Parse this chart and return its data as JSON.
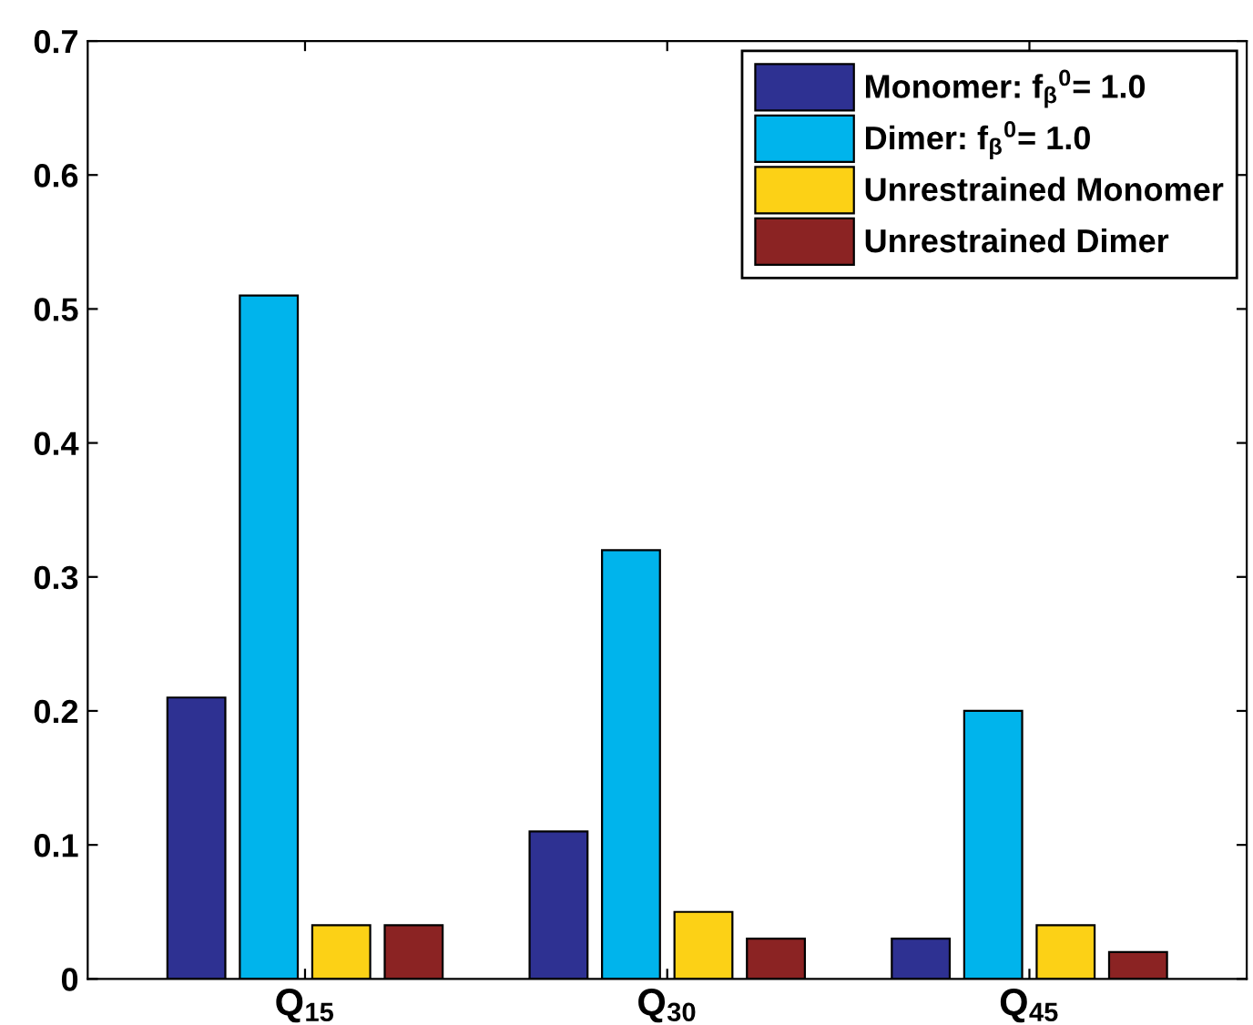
{
  "chart_data": {
    "type": "bar",
    "categories": [
      "Q$_{15}$",
      "Q$_{30}$",
      "Q$_{45}$"
    ],
    "series": [
      {
        "name": "Monomer: f$_{β}$$^{0}$= 1.0",
        "color": "#2e3192",
        "values": [
          0.21,
          0.11,
          0.03
        ]
      },
      {
        "name": "Dimer: f$_{β}$$^{0}$= 1.0",
        "color": "#00b4ec",
        "values": [
          0.51,
          0.32,
          0.2
        ]
      },
      {
        "name": "Unrestrained Monomer",
        "color": "#fcd116",
        "values": [
          0.04,
          0.05,
          0.04
        ]
      },
      {
        "name": "Unrestrained Dimer",
        "color": "#8b2323",
        "values": [
          0.04,
          0.03,
          0.02
        ]
      }
    ],
    "ylim": [
      0,
      0.7
    ],
    "yticks": [
      0,
      0.1,
      0.2,
      0.3,
      0.4,
      0.5,
      0.6,
      0.7
    ],
    "grid": false,
    "legend": "top right"
  }
}
